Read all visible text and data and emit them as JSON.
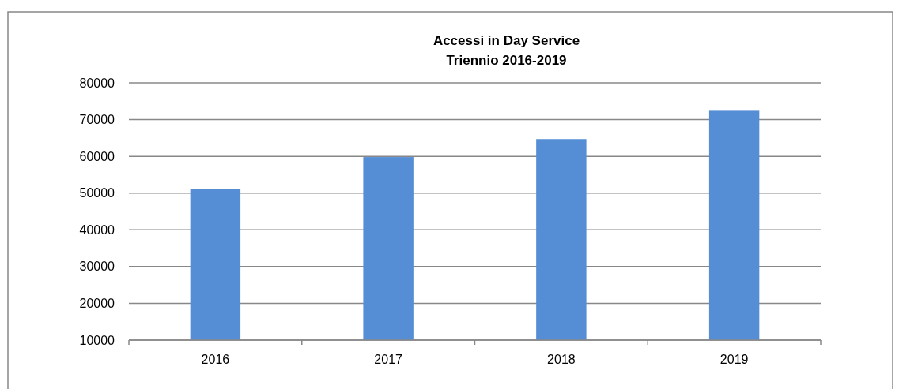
{
  "chart_data": {
    "type": "bar",
    "title": "Accessi in Day Service",
    "subtitle": "Triennio 2016-2019",
    "categories": [
      "2016",
      "2017",
      "2018",
      "2019"
    ],
    "values": [
      51200,
      59800,
      64700,
      72400
    ],
    "color": "#558ed5",
    "ylim": [
      10000,
      80000
    ],
    "yticks": [
      10000,
      20000,
      30000,
      40000,
      50000,
      60000,
      70000,
      80000
    ],
    "grid": "y"
  }
}
